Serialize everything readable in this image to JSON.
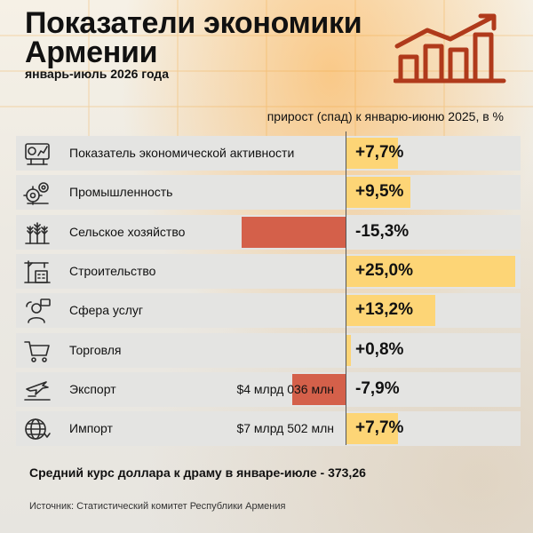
{
  "title": "Показатели экономики Армении",
  "subtitle": "январь-июль 2026 года",
  "column_header": "прирост (спад) к январю-июню 2025, в %",
  "footnote": "Средний курс доллара к драму в январе-июле - 373,26",
  "source": "Источник: Статистический комитет Республики Армения",
  "colors": {
    "positive": "#fdd576",
    "negative": "#d4604a",
    "icon": "#2c2c2c",
    "logo": "#b03a1b",
    "row_bg": "#e4e4e2"
  },
  "chart_data": {
    "type": "bar",
    "title": "Показатели экономики Армении",
    "categories": [
      "Показатель экономической активности",
      "Промышленность",
      "Сельское хозяйство",
      "Строительство",
      "Сфера услуг",
      "Торговля",
      "Экспорт",
      "Импорт"
    ],
    "values": [
      7.7,
      9.5,
      -15.3,
      25.0,
      13.2,
      0.8,
      -7.9,
      7.7
    ],
    "value_labels": [
      "+7,7%",
      "+9,5%",
      "-15,3%",
      "+25,0%",
      "+13,2%",
      "+0,8%",
      "-7,9%",
      "+7,7%"
    ],
    "amounts": [
      "",
      "",
      "",
      "",
      "",
      "",
      "$4 млрд 036 млн",
      "$7 млрд 502 млн"
    ],
    "icons": [
      "activity-dashboard-icon",
      "industry-gears-icon",
      "wheat-icon",
      "construction-crane-icon",
      "services-person-icon",
      "shopping-cart-icon",
      "export-plane-icon",
      "import-globe-icon"
    ],
    "xlim": [
      -25,
      25
    ],
    "orientation": "horizontal"
  }
}
